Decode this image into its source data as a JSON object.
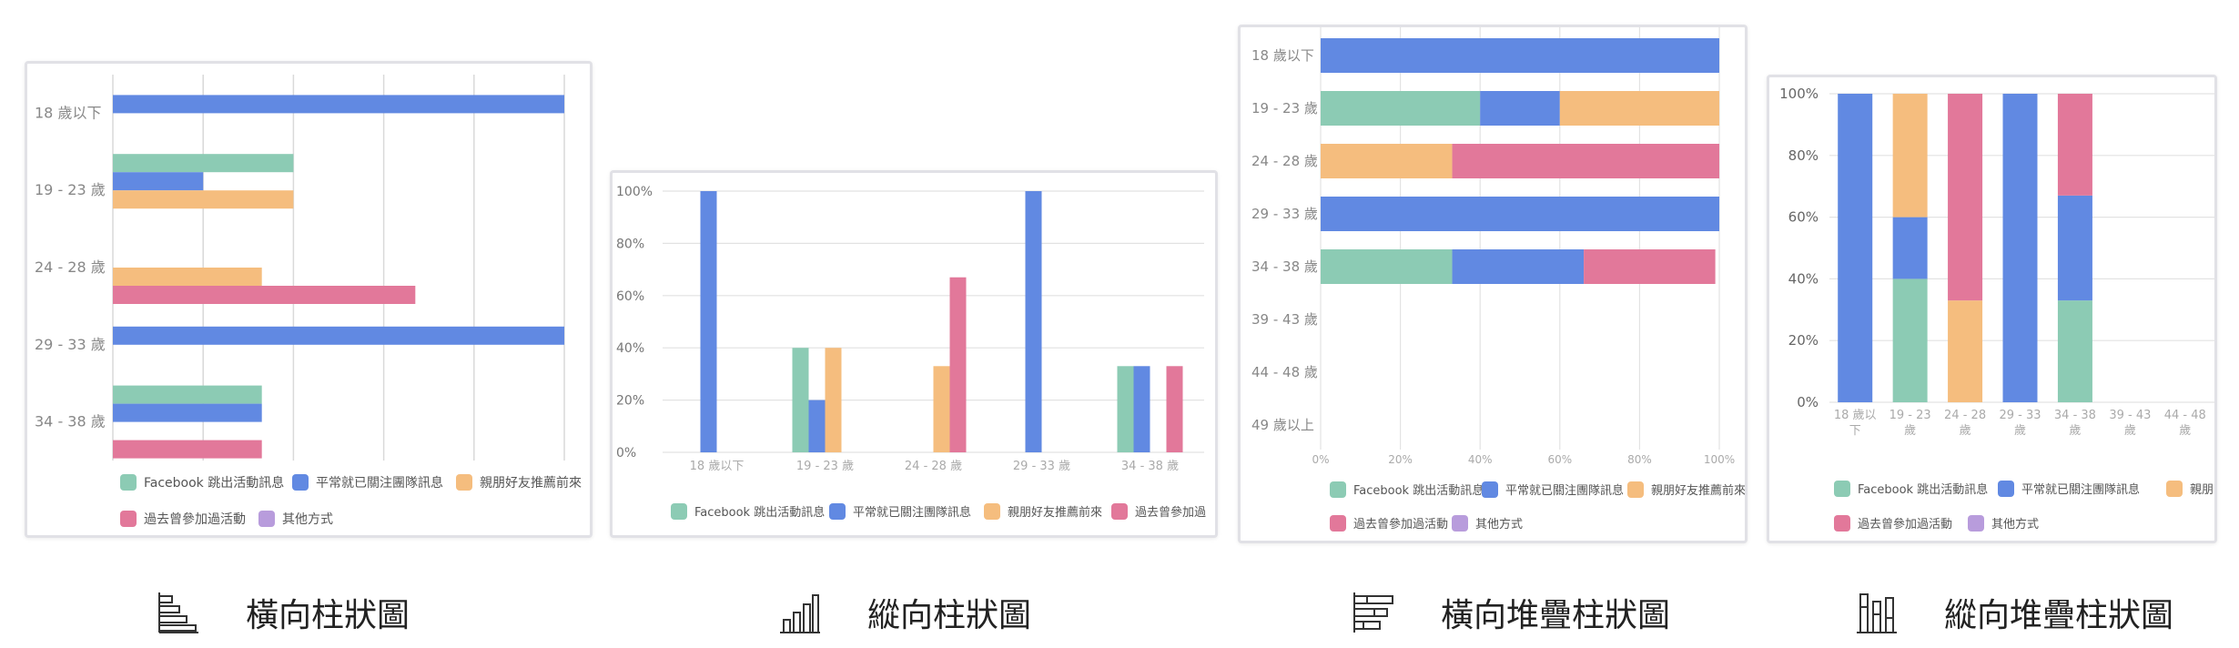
{
  "palette": {
    "series": [
      "#8ccbb4",
      "#6189e2",
      "#f5bd7e",
      "#e2789a",
      "#b89cdc"
    ]
  },
  "captions": [
    {
      "label": "橫向柱狀圖",
      "icon": "horizontal-bar-chart-icon"
    },
    {
      "label": "縱向柱狀圖",
      "icon": "vertical-bar-chart-icon"
    },
    {
      "label": "橫向堆疊柱狀圖",
      "icon": "horizontal-stacked-bar-chart-icon"
    },
    {
      "label": "縱向堆疊柱狀圖",
      "icon": "vertical-stacked-bar-chart-icon"
    }
  ],
  "chart_data": [
    {
      "type": "bar",
      "orientation": "horizontal",
      "stacked": false,
      "categories": [
        "18 歲以下",
        "19 - 23 歲",
        "24 - 28 歲",
        "29 - 33 歲",
        "34 - 38 歲"
      ],
      "series": [
        {
          "name": "Facebook 跳出活動訊息",
          "values": [
            0,
            40,
            0,
            0,
            33
          ]
        },
        {
          "name": "平常就已關注團隊訊息",
          "values": [
            100,
            20,
            0,
            100,
            33
          ]
        },
        {
          "name": "親朋好友推薦前來",
          "values": [
            0,
            40,
            33,
            0,
            0
          ]
        },
        {
          "name": "過去曾參加過活動",
          "values": [
            0,
            0,
            67,
            0,
            33
          ]
        },
        {
          "name": "其他方式",
          "values": [
            0,
            0,
            0,
            0,
            0
          ]
        }
      ],
      "xlim": [
        0,
        100
      ],
      "grid": true,
      "legend": "bottom"
    },
    {
      "type": "bar",
      "orientation": "vertical",
      "stacked": false,
      "categories": [
        "18 歲以下",
        "19 - 23 歲",
        "24 - 28 歲",
        "29 - 33 歲",
        "34 - 38 歲"
      ],
      "series": [
        {
          "name": "Facebook 跳出活動訊息",
          "values": [
            0,
            40,
            0,
            0,
            33
          ]
        },
        {
          "name": "平常就已關注團隊訊息",
          "values": [
            100,
            20,
            0,
            100,
            33
          ]
        },
        {
          "name": "親朋好友推薦前來",
          "values": [
            0,
            40,
            33,
            0,
            0
          ]
        },
        {
          "name": "過去曾參加過",
          "values": [
            0,
            0,
            67,
            0,
            33
          ]
        }
      ],
      "yticks": [
        "0%",
        "20%",
        "40%",
        "60%",
        "80%",
        "100%"
      ],
      "ylim": [
        0,
        100
      ],
      "grid": true,
      "legend": "bottom"
    },
    {
      "type": "bar",
      "orientation": "horizontal",
      "stacked": true,
      "categories": [
        "18 歲以下",
        "19 - 23 歲",
        "24 - 28 歲",
        "29 - 33 歲",
        "34 - 38 歲",
        "39 - 43 歲",
        "44 - 48 歲",
        "49 歲以上"
      ],
      "series": [
        {
          "name": "Facebook 跳出活動訊息",
          "values": [
            0,
            40,
            0,
            0,
            33,
            0,
            0,
            0
          ]
        },
        {
          "name": "平常就已關注團隊訊息",
          "values": [
            100,
            20,
            0,
            100,
            33,
            0,
            0,
            0
          ]
        },
        {
          "name": "親朋好友推薦前來",
          "values": [
            0,
            40,
            33,
            0,
            0,
            0,
            0,
            0
          ]
        },
        {
          "name": "過去曾參加過活動",
          "values": [
            0,
            0,
            67,
            0,
            33,
            0,
            0,
            0
          ]
        },
        {
          "name": "其他方式",
          "values": [
            0,
            0,
            0,
            0,
            0,
            0,
            0,
            0
          ]
        }
      ],
      "xticks": [
        "0%",
        "20%",
        "40%",
        "60%",
        "80%",
        "100%"
      ],
      "xlim": [
        0,
        100
      ],
      "grid": true,
      "legend": "bottom"
    },
    {
      "type": "bar",
      "orientation": "vertical",
      "stacked": true,
      "categories": [
        [
          "18 歲以",
          "下"
        ],
        [
          "19 - 23",
          "歲"
        ],
        [
          "24 - 28",
          "歲"
        ],
        [
          "29 - 33",
          "歲"
        ],
        [
          "34 - 38",
          "歲"
        ],
        [
          "39 - 43",
          "歲"
        ],
        [
          "44 - 48",
          "歲"
        ]
      ],
      "series": [
        {
          "name": "Facebook 跳出活動訊息",
          "values": [
            0,
            40,
            0,
            0,
            33,
            0,
            0
          ]
        },
        {
          "name": "平常就已關注團隊訊息",
          "values": [
            100,
            20,
            0,
            100,
            34,
            0,
            0
          ]
        },
        {
          "name": "親朋",
          "values": [
            0,
            40,
            33,
            0,
            0,
            0,
            0
          ]
        },
        {
          "name": "過去曾參加過活動",
          "values": [
            0,
            0,
            67,
            0,
            33,
            0,
            0
          ]
        },
        {
          "name": "其他方式",
          "values": [
            0,
            0,
            0,
            0,
            0,
            0,
            0
          ]
        }
      ],
      "yticks": [
        "0%",
        "20%",
        "40%",
        "60%",
        "80%",
        "100%"
      ],
      "ylim": [
        0,
        100
      ],
      "grid": true,
      "legend": "bottom"
    }
  ]
}
